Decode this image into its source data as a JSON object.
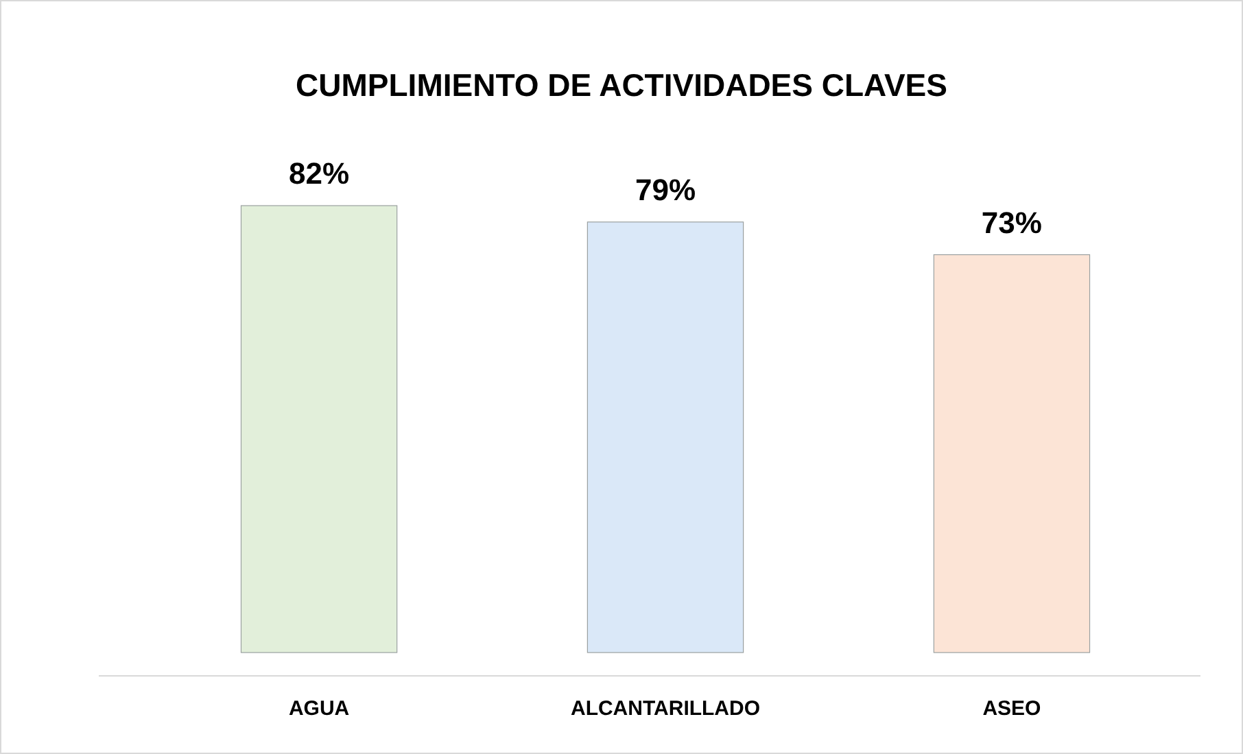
{
  "chart_data": {
    "type": "bar",
    "title": "CUMPLIMIENTO DE ACTIVIDADES CLAVES",
    "categories": [
      "AGUA",
      "ALCANTARILLADO",
      "ASEO"
    ],
    "values": [
      82,
      79,
      73
    ],
    "value_labels": [
      "82%",
      "79%",
      "73%"
    ],
    "colors": [
      "#e2efda",
      "#dae8f8",
      "#fce4d6"
    ],
    "tick_labels": "x"
  }
}
